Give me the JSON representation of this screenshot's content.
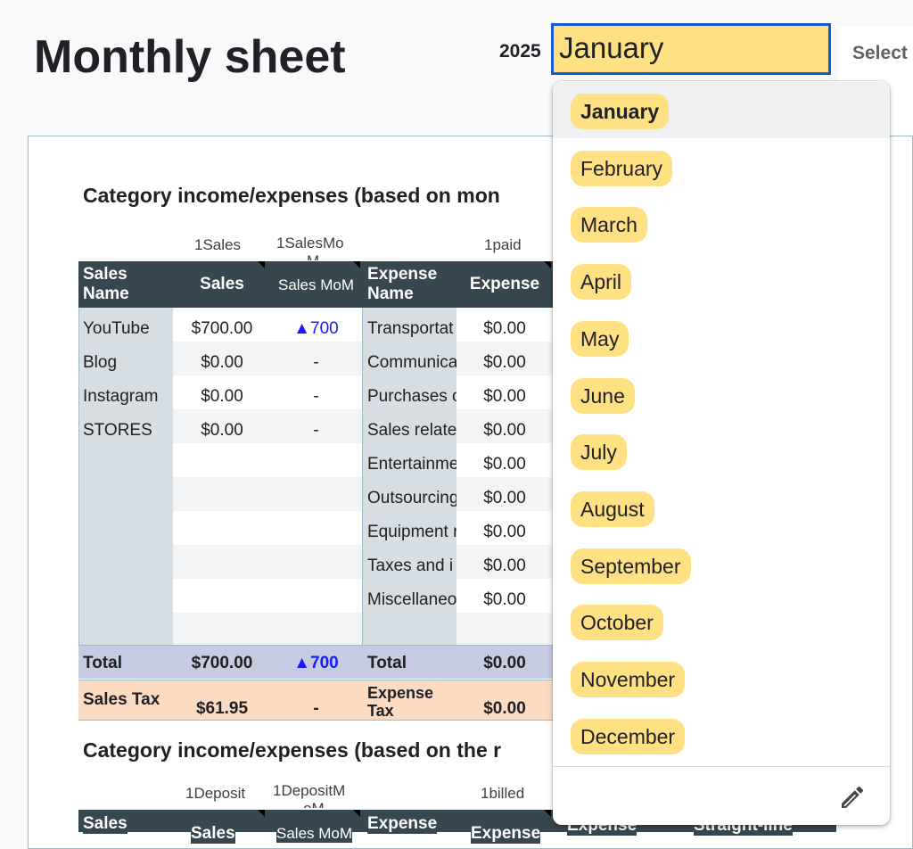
{
  "header": {
    "title": "Monthly sheet",
    "year": "2025",
    "selected_month": "January",
    "select_hint": "Select"
  },
  "section1": {
    "title": "Category income/expenses (based on mon",
    "notes": {
      "sales": "1Sales",
      "salesmom": "1SalesMo",
      "salesmom2": "M",
      "paid": "1paid"
    },
    "headers": {
      "sales_name": [
        "Sales",
        "Name"
      ],
      "sales": "Sales",
      "sales_mom": "Sales MoM",
      "expense_name": [
        "Expense",
        "Name"
      ],
      "expense": "Expense"
    },
    "sales_rows": [
      {
        "name": "YouTube",
        "sales": "$700.00",
        "mom": "▲700"
      },
      {
        "name": "Blog",
        "sales": "$0.00",
        "mom": "-"
      },
      {
        "name": "Instagram",
        "sales": "$0.00",
        "mom": "-"
      },
      {
        "name": "STORES",
        "sales": "$0.00",
        "mom": "-"
      }
    ],
    "expense_rows": [
      {
        "name": "Transportat",
        "amount": "$0.00"
      },
      {
        "name": "Communica",
        "amount": "$0.00"
      },
      {
        "name": "Purchases o",
        "amount": "$0.00"
      },
      {
        "name": "Sales relate",
        "amount": "$0.00"
      },
      {
        "name": "Entertainme",
        "amount": "$0.00"
      },
      {
        "name": "Outsourcing",
        "amount": "$0.00"
      },
      {
        "name": "Equipment r",
        "amount": "$0.00"
      },
      {
        "name": "Taxes and i",
        "amount": "$0.00"
      },
      {
        "name": "Miscellaneo",
        "amount": "$0.00"
      }
    ],
    "total": {
      "label": "Total",
      "sales": "$700.00",
      "mom": "▲700",
      "exp_label": "Total",
      "expense": "$0.00"
    },
    "tax": {
      "label": "Sales Tax",
      "sales": "$61.95",
      "mom": "-",
      "exp_label": [
        "Expense",
        "Tax"
      ],
      "expense": "$0.00"
    }
  },
  "section2": {
    "title": "Category income/expenses (based on the r",
    "notes": {
      "deposit": "1Deposit",
      "depositmom": "1DepositM",
      "depositmom2": "oM",
      "billed": "1billed"
    },
    "headers": {
      "sales_name": "Sales",
      "sales": "Sales",
      "sales_mom": "Sales MoM",
      "expense_name": "Expense",
      "expense": "Expense",
      "expense2": "Expense",
      "straight": "Straight-line"
    }
  },
  "dropdown": {
    "options": [
      "January",
      "February",
      "March",
      "April",
      "May",
      "June",
      "July",
      "August",
      "September",
      "October",
      "November",
      "December"
    ],
    "highlighted": "January",
    "edit_icon": "pencil-icon"
  },
  "colors": {
    "header_dark": "#37474f",
    "chip_yellow": "#ffe082",
    "focus_blue": "#1a56db",
    "total_row": "#c5cbe0",
    "tax_row": "#fbdcc2",
    "up_arrow": "#1a1aff"
  }
}
